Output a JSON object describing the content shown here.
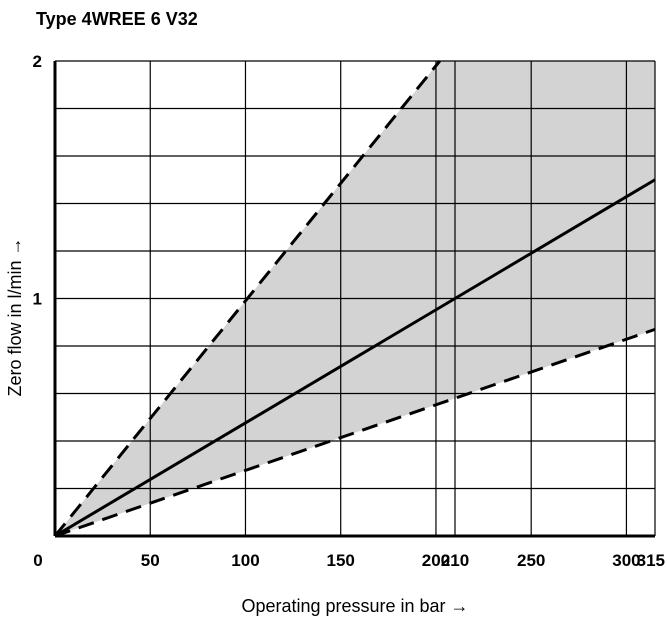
{
  "chart_data": {
    "type": "line",
    "title": "Type 4WREE 6 V32",
    "xlabel": "Operating pressure in bar →",
    "ylabel": "Zero flow in l/min →",
    "xlim": [
      0,
      315
    ],
    "ylim": [
      0,
      2
    ],
    "x_ticks": [
      0,
      50,
      100,
      150,
      200,
      210,
      250,
      300,
      315
    ],
    "x_tick_labels": [
      "0",
      "50",
      "100",
      "150",
      "200",
      "210",
      "250",
      "300",
      "315"
    ],
    "y_ticks": [
      1,
      2
    ],
    "y_tick_labels": [
      "1",
      "2"
    ],
    "y_grid": [
      0.2,
      0.4,
      0.6,
      0.8,
      1.0,
      1.2,
      1.4,
      1.6,
      1.8,
      2.0
    ],
    "grid": true,
    "shaded_band": {
      "between": [
        "upper",
        "lower"
      ],
      "color": "#d3d3d3"
    },
    "series": [
      {
        "id": "upper",
        "style": "dashed",
        "x": [
          0,
          202
        ],
        "y": [
          0,
          2.0
        ]
      },
      {
        "id": "mean",
        "style": "solid",
        "x": [
          0,
          315
        ],
        "y": [
          0,
          1.5
        ]
      },
      {
        "id": "lower",
        "style": "dashed",
        "x": [
          0,
          315
        ],
        "y": [
          0,
          0.87
        ]
      }
    ]
  }
}
